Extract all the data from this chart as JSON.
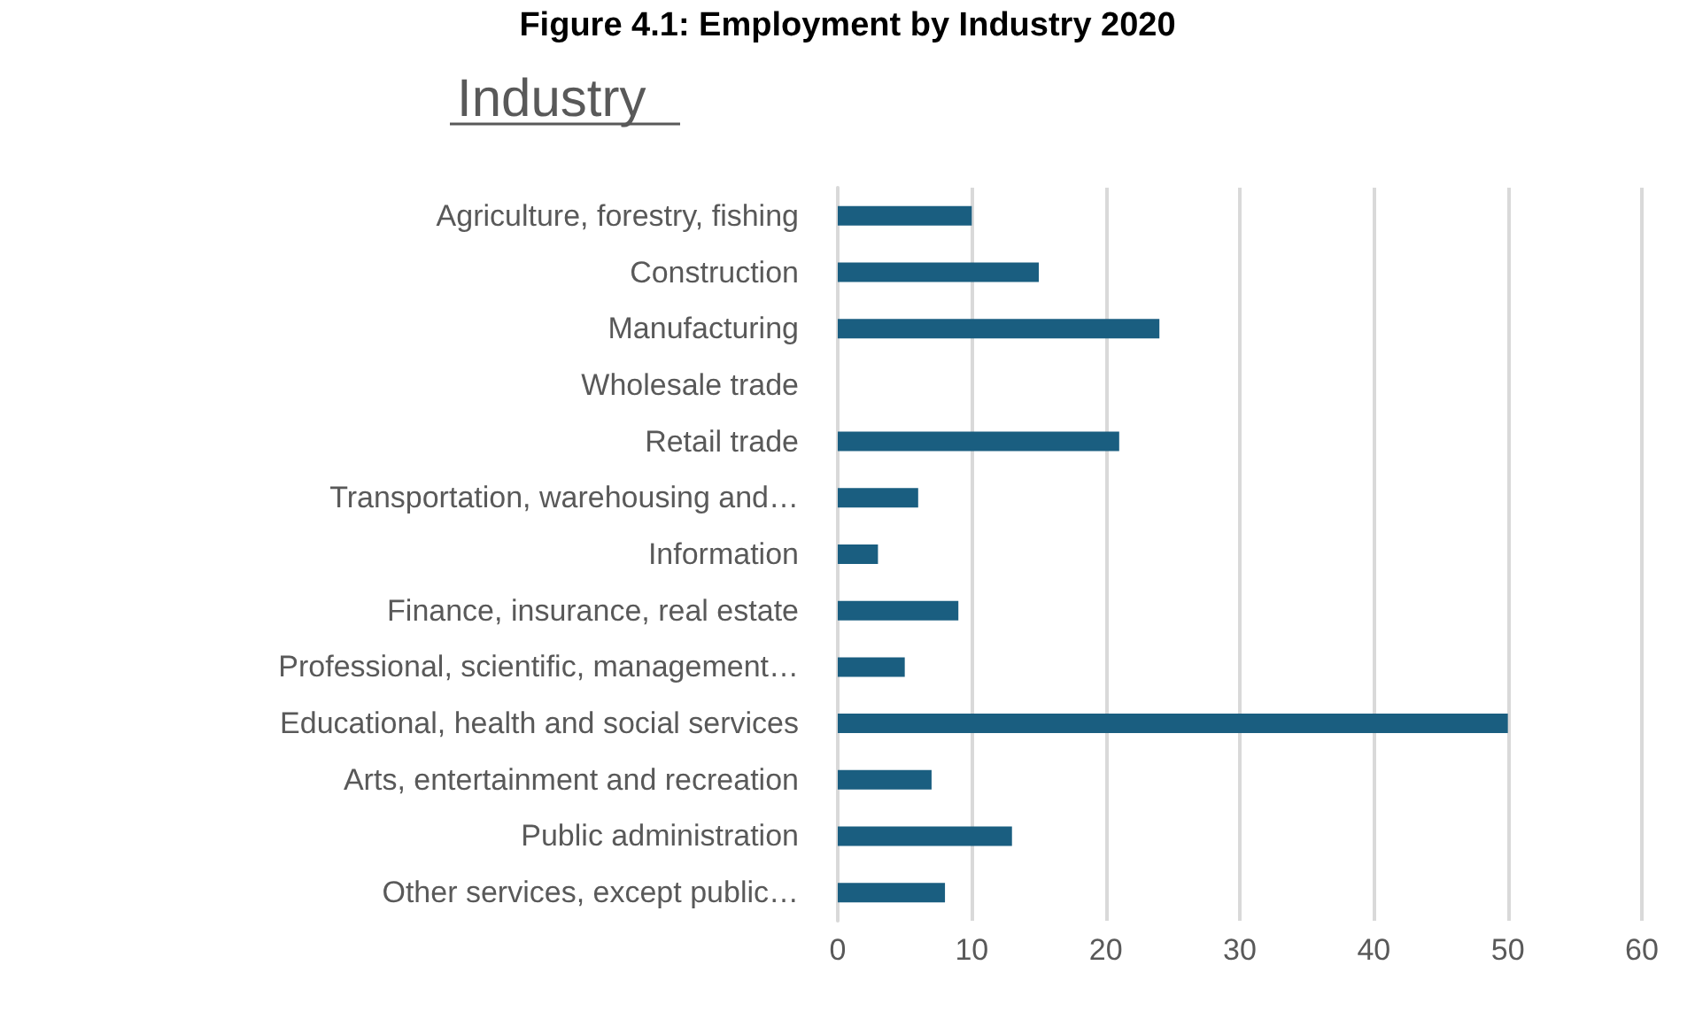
{
  "chart_data": {
    "type": "bar",
    "orientation": "horizontal",
    "title": "Figure 4.1: Employment by Industry 2020",
    "subtitle": "Industry",
    "categories": [
      "Agriculture, forestry, fishing",
      "Construction",
      "Manufacturing",
      "Wholesale trade",
      "Retail trade",
      "Transportation, warehousing and…",
      "Information",
      "Finance, insurance, real estate",
      "Professional, scientific, management…",
      "Educational, health and social services",
      "Arts, entertainment and recreation",
      "Public administration",
      "Other services, except public…"
    ],
    "values": [
      10,
      15,
      24,
      0,
      21,
      6,
      3,
      9,
      5,
      50,
      7,
      13,
      8
    ],
    "color": "#1a5e80",
    "xlim": [
      0,
      60
    ],
    "xticks": [
      0,
      10,
      20,
      30,
      40,
      50,
      60
    ],
    "grid": "x"
  }
}
